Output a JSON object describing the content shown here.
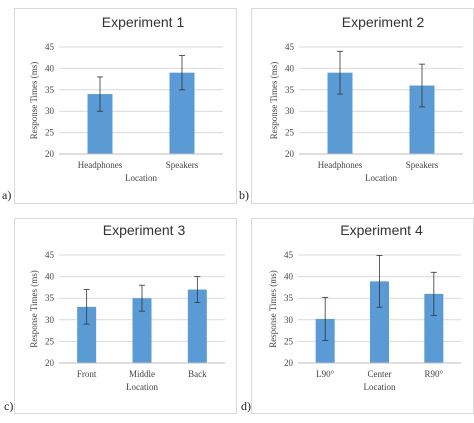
{
  "chart_data": [
    {
      "type": "bar",
      "panel": "a)",
      "title": "Experiment 1",
      "xlabel": "Location",
      "ylabel": "Response Times (ms)",
      "ylim": [
        20,
        45
      ],
      "yticks": [
        20,
        25,
        30,
        35,
        40,
        45
      ],
      "categories": [
        "Headphones",
        "Speakers"
      ],
      "values": [
        34,
        39
      ],
      "error": [
        4,
        4
      ],
      "color": "#5b9bd5"
    },
    {
      "type": "bar",
      "panel": "b)",
      "title": "Experiment 2",
      "xlabel": "Location",
      "ylabel": "Response Times (ms)",
      "ylim": [
        20,
        45
      ],
      "yticks": [
        20,
        25,
        30,
        35,
        40,
        45
      ],
      "categories": [
        "Headphones",
        "Speakers"
      ],
      "values": [
        39,
        36
      ],
      "error": [
        5,
        5
      ],
      "color": "#5b9bd5"
    },
    {
      "type": "bar",
      "panel": "c)",
      "title": "Experiment 3",
      "xlabel": "Location",
      "ylabel": "Response Times (ms)",
      "ylim": [
        20,
        45
      ],
      "yticks": [
        20,
        25,
        30,
        35,
        40,
        45
      ],
      "categories": [
        "Front",
        "Middle",
        "Back"
      ],
      "values": [
        33,
        35,
        37
      ],
      "error": [
        4,
        3,
        3
      ],
      "color": "#5b9bd5"
    },
    {
      "type": "bar",
      "panel": "d)",
      "title": "Experiment 4",
      "xlabel": "Location",
      "ylabel": "Response Times (ms)",
      "ylim": [
        20,
        45
      ],
      "yticks": [
        20,
        25,
        30,
        35,
        40,
        45
      ],
      "categories": [
        "L90°",
        "Center",
        "R90°"
      ],
      "values": [
        30.2,
        38.9,
        36
      ],
      "error": [
        5,
        6,
        5
      ],
      "color": "#5b9bd5"
    }
  ]
}
